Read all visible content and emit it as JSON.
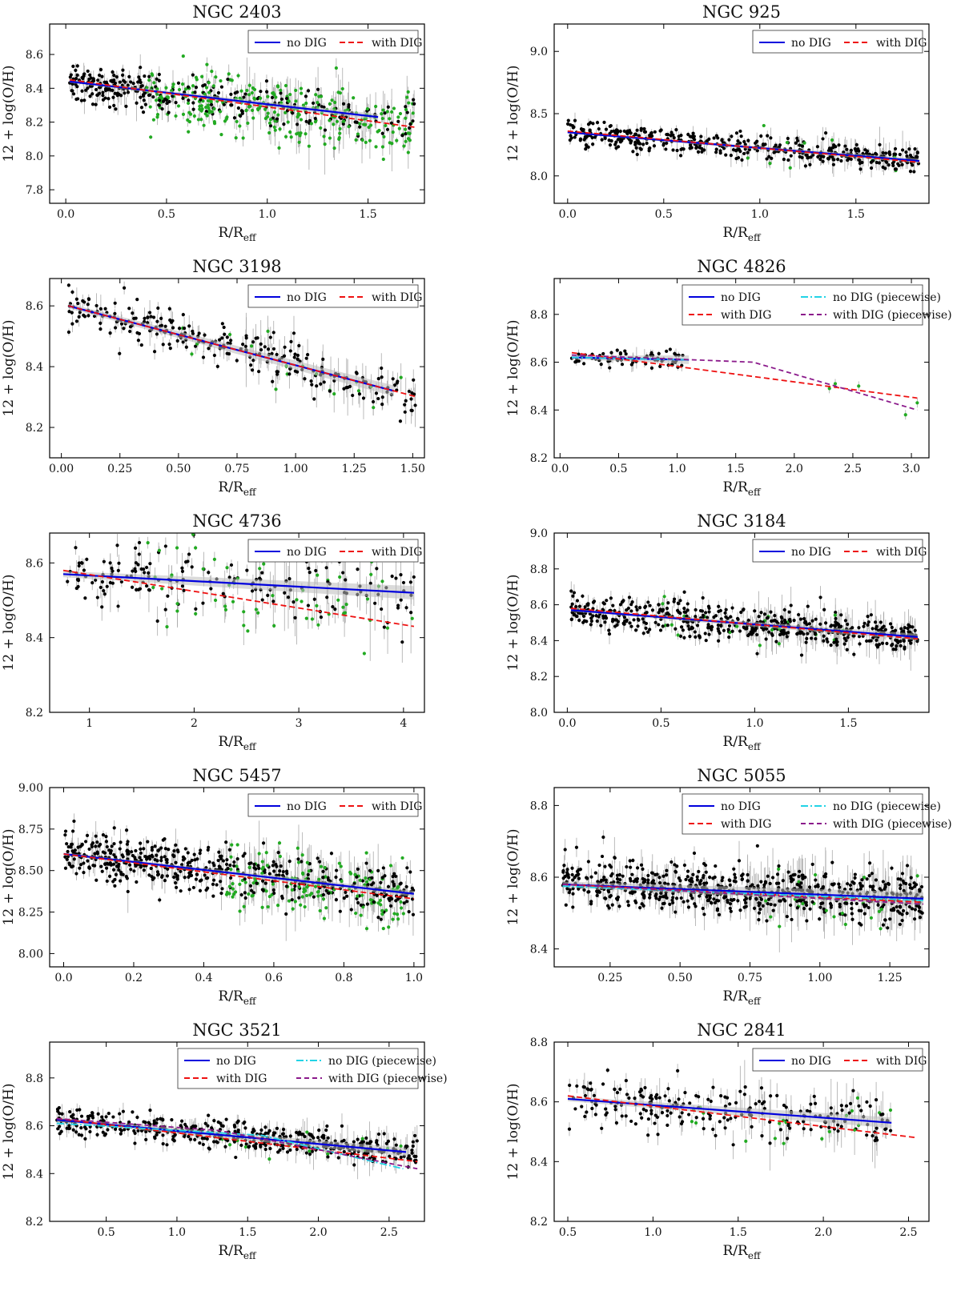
{
  "figure": {
    "xlabel_main": "R/R",
    "xlabel_sub": "eff",
    "ylabel": "12 + log(O/H)"
  },
  "colors": {
    "no_dig": "#0000dd",
    "with_dig": "#ee1111",
    "no_dig_piecewise": "#22d3e6",
    "with_dig_piecewise": "#8b1a8b",
    "points_no_dig": "#000000",
    "points_dig": "#22aa22",
    "errorbar": "#aaaaaa",
    "band": "#bbbbbb"
  },
  "legend_labels": {
    "no_dig": "no DIG",
    "with_dig": "with DIG",
    "no_dig_piecewise": "no DIG (piecewise)",
    "with_dig_piecewise": "with DIG (piecewise)"
  },
  "chart_data": [
    {
      "type": "scatter",
      "title": "NGC 2403",
      "xlim": [
        -0.08,
        1.78
      ],
      "ylim": [
        7.72,
        8.78
      ],
      "xticks": [
        0.0,
        0.5,
        1.0,
        1.5
      ],
      "yticks": [
        7.8,
        8.0,
        8.2,
        8.4,
        8.6
      ],
      "xtick_labels": [
        "0.0",
        "0.5",
        "1.0",
        "1.5"
      ],
      "ytick_labels": [
        "7.8",
        "8.0",
        "8.2",
        "8.4",
        "8.6"
      ],
      "legend": "top-right",
      "legend_entries": [
        "no_dig",
        "with_dig"
      ],
      "fits": [
        {
          "key": "no_dig",
          "x": [
            0.02,
            1.55
          ],
          "y": [
            8.44,
            8.23
          ]
        },
        {
          "key": "with_dig",
          "x": [
            0.02,
            1.73
          ],
          "y": [
            8.45,
            8.17
          ]
        }
      ],
      "points_summary": {
        "n": 600,
        "x_range": [
          0.02,
          1.73
        ],
        "scatter": 0.06,
        "dig_fraction": 0.5,
        "dig_x_range": [
          0.4,
          1.73
        ]
      }
    },
    {
      "type": "scatter",
      "title": "NGC 925",
      "xlim": [
        -0.07,
        1.88
      ],
      "ylim": [
        7.78,
        9.22
      ],
      "xticks": [
        0.0,
        0.5,
        1.0,
        1.5
      ],
      "yticks": [
        8.0,
        8.5,
        9.0
      ],
      "xtick_labels": [
        "0.0",
        "0.5",
        "1.0",
        "1.5"
      ],
      "ytick_labels": [
        "8.0",
        "8.5",
        "9.0"
      ],
      "legend": "top-right",
      "legend_entries": [
        "no_dig",
        "with_dig"
      ],
      "fits": [
        {
          "key": "no_dig",
          "x": [
            0.0,
            1.83
          ],
          "y": [
            8.35,
            8.12
          ]
        },
        {
          "key": "with_dig",
          "x": [
            0.0,
            1.83
          ],
          "y": [
            8.36,
            8.11
          ]
        }
      ],
      "points_summary": {
        "n": 450,
        "x_range": [
          0.0,
          1.83
        ],
        "scatter": 0.05,
        "dig_fraction": 0.02,
        "dig_x_range": [
          0.8,
          1.8
        ]
      }
    },
    {
      "type": "scatter",
      "title": "NGC 3198",
      "xlim": [
        -0.05,
        1.55
      ],
      "ylim": [
        8.1,
        8.69
      ],
      "xticks": [
        0.0,
        0.25,
        0.5,
        0.75,
        1.0,
        1.25,
        1.5
      ],
      "yticks": [
        8.2,
        8.4,
        8.6
      ],
      "xtick_labels": [
        "0.00",
        "0.25",
        "0.50",
        "0.75",
        "1.00",
        "1.25",
        "1.50"
      ],
      "ytick_labels": [
        "8.2",
        "8.4",
        "8.6"
      ],
      "legend": "top-right",
      "legend_entries": [
        "no_dig",
        "with_dig"
      ],
      "fits": [
        {
          "key": "no_dig",
          "x": [
            0.03,
            1.42
          ],
          "y": [
            8.6,
            8.32
          ]
        },
        {
          "key": "with_dig",
          "x": [
            0.03,
            1.52
          ],
          "y": [
            8.6,
            8.3
          ]
        }
      ],
      "points_summary": {
        "n": 280,
        "x_range": [
          0.03,
          1.52
        ],
        "scatter": 0.035,
        "dig_fraction": 0.08,
        "dig_x_range": [
          0.5,
          1.5
        ]
      }
    },
    {
      "type": "scatter",
      "title": "NGC 4826",
      "xlim": [
        -0.05,
        3.15
      ],
      "ylim": [
        8.2,
        8.95
      ],
      "xticks": [
        0.0,
        0.5,
        1.0,
        1.5,
        2.0,
        2.5,
        3.0
      ],
      "yticks": [
        8.2,
        8.4,
        8.6,
        8.8
      ],
      "xtick_labels": [
        "0.0",
        "0.5",
        "1.0",
        "1.5",
        "2.0",
        "2.5",
        "3.0"
      ],
      "ytick_labels": [
        "8.2",
        "8.4",
        "8.6",
        "8.8"
      ],
      "legend": "top-right",
      "legend_entries": [
        "no_dig",
        "no_dig_piecewise",
        "with_dig",
        "with_dig_piecewise"
      ],
      "fits": [
        {
          "key": "no_dig",
          "x": [
            0.1,
            1.1
          ],
          "y": [
            8.62,
            8.61
          ]
        },
        {
          "key": "no_dig_piecewise",
          "x": [
            0.1,
            1.1
          ],
          "y": [
            8.62,
            8.61
          ]
        },
        {
          "key": "with_dig",
          "x": [
            0.1,
            3.05
          ],
          "y": [
            8.64,
            8.45
          ]
        },
        {
          "key": "with_dig_piecewise",
          "x": [
            0.1,
            1.65,
            3.05
          ],
          "y": [
            8.63,
            8.6,
            8.4
          ]
        }
      ],
      "points_summary": {
        "n": 70,
        "x_range": [
          0.1,
          1.05
        ],
        "scatter": 0.02,
        "dig_fraction": 0.0,
        "dig_x_range": [
          0.1,
          1.0
        ]
      },
      "extra_points": [
        {
          "x": 2.3,
          "y": 8.49,
          "dig": true
        },
        {
          "x": 2.55,
          "y": 8.5,
          "dig": true
        },
        {
          "x": 2.95,
          "y": 8.38,
          "dig": true
        },
        {
          "x": 3.05,
          "y": 8.43,
          "dig": true
        },
        {
          "x": 2.35,
          "y": 8.51,
          "dig": true
        }
      ]
    },
    {
      "type": "scatter",
      "title": "NGC 4736",
      "xlim": [
        0.62,
        4.2
      ],
      "ylim": [
        8.2,
        8.68
      ],
      "xticks": [
        1,
        2,
        3,
        4
      ],
      "yticks": [
        8.2,
        8.4,
        8.6
      ],
      "xtick_labels": [
        "1",
        "2",
        "3",
        "4"
      ],
      "ytick_labels": [
        "8.2",
        "8.4",
        "8.6"
      ],
      "legend": "top-right",
      "legend_entries": [
        "no_dig",
        "with_dig"
      ],
      "fits": [
        {
          "key": "no_dig",
          "x": [
            0.75,
            4.1
          ],
          "y": [
            8.57,
            8.52
          ]
        },
        {
          "key": "with_dig",
          "x": [
            0.75,
            4.1
          ],
          "y": [
            8.58,
            8.43
          ]
        }
      ],
      "points_summary": {
        "n": 230,
        "x_range": [
          0.75,
          4.1
        ],
        "scatter": 0.04,
        "dig_fraction": 0.25,
        "dig_x_range": [
          1.5,
          4.1
        ]
      }
    },
    {
      "type": "scatter",
      "title": "NGC 3184",
      "xlim": [
        -0.07,
        1.93
      ],
      "ylim": [
        8.0,
        9.0
      ],
      "xticks": [
        0.0,
        0.5,
        1.0,
        1.5
      ],
      "yticks": [
        8.0,
        8.2,
        8.4,
        8.6,
        8.8,
        9.0
      ],
      "xtick_labels": [
        "0.0",
        "0.5",
        "1.0",
        "1.5"
      ],
      "ytick_labels": [
        "8.0",
        "8.2",
        "8.4",
        "8.6",
        "8.8",
        "9.0"
      ],
      "legend": "top-right",
      "legend_entries": [
        "no_dig",
        "with_dig"
      ],
      "fits": [
        {
          "key": "no_dig",
          "x": [
            0.02,
            1.87
          ],
          "y": [
            8.57,
            8.42
          ]
        },
        {
          "key": "with_dig",
          "x": [
            0.02,
            1.87
          ],
          "y": [
            8.58,
            8.41
          ]
        }
      ],
      "points_summary": {
        "n": 550,
        "x_range": [
          0.02,
          1.87
        ],
        "scatter": 0.05,
        "dig_fraction": 0.05,
        "dig_x_range": [
          0.5,
          1.5
        ]
      }
    },
    {
      "type": "scatter",
      "title": "NGC 5457",
      "xlim": [
        -0.04,
        1.03
      ],
      "ylim": [
        7.92,
        9.0
      ],
      "xticks": [
        0.0,
        0.2,
        0.4,
        0.6,
        0.8,
        1.0
      ],
      "yticks": [
        8.0,
        8.25,
        8.5,
        8.75,
        9.0
      ],
      "xtick_labels": [
        "0.0",
        "0.2",
        "0.4",
        "0.6",
        "0.8",
        "1.0"
      ],
      "ytick_labels": [
        "8.00",
        "8.25",
        "8.50",
        "8.75",
        "9.00"
      ],
      "legend": "top-right",
      "legend_entries": [
        "no_dig",
        "with_dig"
      ],
      "fits": [
        {
          "key": "no_dig",
          "x": [
            0.0,
            1.0
          ],
          "y": [
            8.6,
            8.36
          ]
        },
        {
          "key": "with_dig",
          "x": [
            0.0,
            1.0
          ],
          "y": [
            8.6,
            8.33
          ]
        }
      ],
      "points_summary": {
        "n": 650,
        "x_range": [
          0.0,
          1.0
        ],
        "scatter": 0.07,
        "dig_fraction": 0.35,
        "dig_x_range": [
          0.45,
          0.98
        ]
      }
    },
    {
      "type": "scatter",
      "title": "NGC 5055",
      "xlim": [
        0.05,
        1.39
      ],
      "ylim": [
        8.35,
        8.85
      ],
      "xticks": [
        0.25,
        0.5,
        0.75,
        1.0,
        1.25
      ],
      "yticks": [
        8.4,
        8.6,
        8.8
      ],
      "xtick_labels": [
        "0.25",
        "0.50",
        "0.75",
        "1.00",
        "1.25"
      ],
      "ytick_labels": [
        "8.4",
        "8.6",
        "8.8"
      ],
      "legend": "top-right",
      "legend_entries": [
        "no_dig",
        "no_dig_piecewise",
        "with_dig",
        "with_dig_piecewise"
      ],
      "fits": [
        {
          "key": "no_dig",
          "x": [
            0.08,
            1.37
          ],
          "y": [
            8.58,
            8.54
          ]
        },
        {
          "key": "with_dig",
          "x": [
            0.08,
            1.37
          ],
          "y": [
            8.58,
            8.53
          ]
        },
        {
          "key": "no_dig_piecewise",
          "x": [
            0.08,
            1.37
          ],
          "y": [
            8.575,
            8.535
          ]
        },
        {
          "key": "with_dig_piecewise",
          "x": [
            0.08,
            1.37
          ],
          "y": [
            8.58,
            8.525
          ]
        }
      ],
      "points_summary": {
        "n": 700,
        "x_range": [
          0.08,
          1.37
        ],
        "scatter": 0.035,
        "dig_fraction": 0.06,
        "dig_x_range": [
          0.8,
          1.37
        ]
      }
    },
    {
      "type": "scatter",
      "title": "NGC 3521",
      "xlim": [
        0.1,
        2.75
      ],
      "ylim": [
        8.2,
        8.95
      ],
      "xticks": [
        0.5,
        1.0,
        1.5,
        2.0,
        2.5
      ],
      "yticks": [
        8.2,
        8.4,
        8.6,
        8.8
      ],
      "xtick_labels": [
        "0.5",
        "1.0",
        "1.5",
        "2.0",
        "2.5"
      ],
      "ytick_labels": [
        "8.2",
        "8.4",
        "8.6",
        "8.8"
      ],
      "legend": "top-right",
      "legend_entries": [
        "no_dig",
        "no_dig_piecewise",
        "with_dig",
        "with_dig_piecewise"
      ],
      "fits": [
        {
          "key": "no_dig",
          "x": [
            0.15,
            2.62
          ],
          "y": [
            8.625,
            8.49
          ]
        },
        {
          "key": "with_dig",
          "x": [
            0.15,
            2.7
          ],
          "y": [
            8.63,
            8.45
          ]
        },
        {
          "key": "no_dig_piecewise",
          "x": [
            0.15,
            1.6,
            2.6
          ],
          "y": [
            8.61,
            8.56,
            8.42
          ]
        },
        {
          "key": "with_dig_piecewise",
          "x": [
            0.15,
            1.3,
            2.7
          ],
          "y": [
            8.63,
            8.58,
            8.42
          ]
        }
      ],
      "points_summary": {
        "n": 480,
        "x_range": [
          0.15,
          2.7
        ],
        "scatter": 0.03,
        "dig_fraction": 0.05,
        "dig_x_range": [
          1.3,
          2.7
        ]
      }
    },
    {
      "type": "scatter",
      "title": "NGC 2841",
      "xlim": [
        0.42,
        2.62
      ],
      "ylim": [
        8.2,
        8.8
      ],
      "xticks": [
        0.5,
        1.0,
        1.5,
        2.0,
        2.5
      ],
      "yticks": [
        8.2,
        8.4,
        8.6,
        8.8
      ],
      "xtick_labels": [
        "0.5",
        "1.0",
        "1.5",
        "2.0",
        "2.5"
      ],
      "ytick_labels": [
        "8.2",
        "8.4",
        "8.6",
        "8.8"
      ],
      "legend": "top-right",
      "legend_entries": [
        "no_dig",
        "with_dig"
      ],
      "fits": [
        {
          "key": "no_dig",
          "x": [
            0.5,
            2.4
          ],
          "y": [
            8.61,
            8.53
          ]
        },
        {
          "key": "with_dig",
          "x": [
            0.5,
            2.55
          ],
          "y": [
            8.62,
            8.48
          ]
        }
      ],
      "points_summary": {
        "n": 240,
        "x_range": [
          0.5,
          2.4
        ],
        "scatter": 0.04,
        "dig_fraction": 0.1,
        "dig_x_range": [
          1.2,
          2.6
        ]
      }
    }
  ]
}
